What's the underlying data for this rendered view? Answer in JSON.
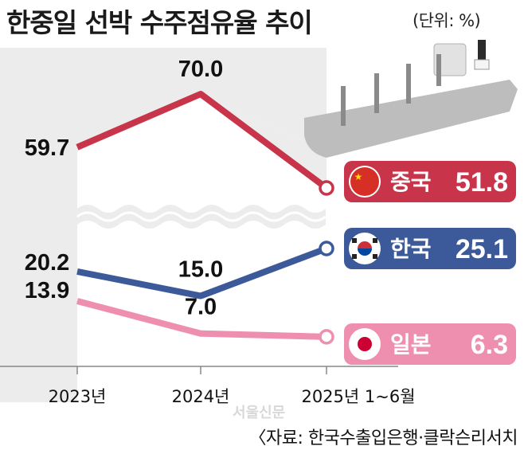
{
  "chart_data": {
    "type": "line",
    "title": "한중일 선박 수주점유율 추이",
    "unit": "(단위: %)",
    "categories": [
      "2023년",
      "2024년",
      "2025년 1~6월"
    ],
    "axis_break": true,
    "series": [
      {
        "name": "중국",
        "values": [
          59.7,
          70.0,
          51.8
        ],
        "value_labels": [
          "59.7",
          "70.0",
          "51.8"
        ],
        "color": "#c8344a",
        "flag": "china-flag"
      },
      {
        "name": "한국",
        "values": [
          20.2,
          15.0,
          25.1
        ],
        "value_labels": [
          "20.2",
          "15.0",
          "25.1"
        ],
        "color": "#3c5a9a",
        "flag": "korea-flag"
      },
      {
        "name": "일본",
        "values": [
          13.9,
          7.0,
          6.3
        ],
        "value_labels": [
          "13.9",
          "7.0",
          "6.3"
        ],
        "color": "#ee8fb0",
        "flag": "japan-flag"
      }
    ],
    "source": "〈자료: 한국수출입은행·클락슨리서치"
  },
  "watermark": "서울신문",
  "icons": [
    "ship-icon",
    "china-flag-icon",
    "korea-flag-icon",
    "japan-flag-icon"
  ]
}
